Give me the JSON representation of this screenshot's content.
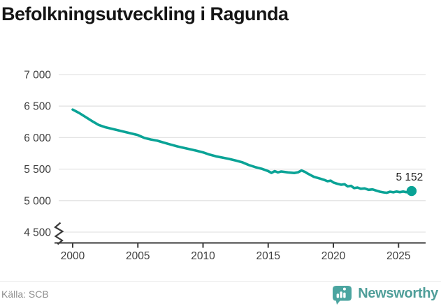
{
  "header": {
    "title": "Befolkningsutveckling i Ragunda"
  },
  "chart_data": {
    "type": "line",
    "title": "Befolkningsutveckling i Ragunda",
    "x_unit": "year",
    "ylim": [
      4500,
      7000
    ],
    "axis_break_below": 4500,
    "grid": "horizontal",
    "legend": "none",
    "colors": {
      "line": "#0aa396",
      "grid": "#e3e3e3",
      "axis": "#3a3a3a",
      "tick_label": "#3f3f3f",
      "annotation": "#1f1f1f"
    },
    "xticks": [
      2000,
      2005,
      2010,
      2015,
      2020,
      2025
    ],
    "yticks": [
      {
        "value": 7000,
        "label": "7 000"
      },
      {
        "value": 6500,
        "label": "6 500"
      },
      {
        "value": 6000,
        "label": "6 000"
      },
      {
        "value": 5500,
        "label": "5 500"
      },
      {
        "value": 5000,
        "label": "5 000"
      },
      {
        "value": 4500,
        "label": "4 500"
      }
    ],
    "annotation": {
      "text": "5 152",
      "x": 2026,
      "y": 5152
    },
    "series": [
      {
        "points": [
          [
            2000,
            6445
          ],
          [
            2000.5,
            6390
          ],
          [
            2001,
            6325
          ],
          [
            2001.5,
            6260
          ],
          [
            2002,
            6200
          ],
          [
            2002.5,
            6165
          ],
          [
            2003,
            6140
          ],
          [
            2003.5,
            6115
          ],
          [
            2004,
            6090
          ],
          [
            2004.5,
            6065
          ],
          [
            2005,
            6040
          ],
          [
            2005.5,
            5995
          ],
          [
            2006,
            5970
          ],
          [
            2006.5,
            5950
          ],
          [
            2007,
            5920
          ],
          [
            2007.5,
            5890
          ],
          [
            2008,
            5862
          ],
          [
            2008.4,
            5843
          ],
          [
            2009,
            5815
          ],
          [
            2009.5,
            5792
          ],
          [
            2010,
            5765
          ],
          [
            2010.5,
            5730
          ],
          [
            2011,
            5702
          ],
          [
            2011.5,
            5682
          ],
          [
            2012,
            5662
          ],
          [
            2012.5,
            5636
          ],
          [
            2013,
            5610
          ],
          [
            2013.5,
            5565
          ],
          [
            2014,
            5532
          ],
          [
            2014.5,
            5506
          ],
          [
            2015,
            5468
          ],
          [
            2015.25,
            5440
          ],
          [
            2015.5,
            5468
          ],
          [
            2015.75,
            5448
          ],
          [
            2016,
            5462
          ],
          [
            2016.5,
            5448
          ],
          [
            2017,
            5438
          ],
          [
            2017.3,
            5450
          ],
          [
            2017.55,
            5478
          ],
          [
            2017.8,
            5458
          ],
          [
            2018,
            5432
          ],
          [
            2018.5,
            5378
          ],
          [
            2019,
            5348
          ],
          [
            2019.3,
            5328
          ],
          [
            2019.55,
            5308
          ],
          [
            2019.8,
            5316
          ],
          [
            2020,
            5288
          ],
          [
            2020.3,
            5268
          ],
          [
            2020.6,
            5252
          ],
          [
            2020.85,
            5260
          ],
          [
            2021.1,
            5226
          ],
          [
            2021.35,
            5234
          ],
          [
            2021.6,
            5198
          ],
          [
            2021.85,
            5208
          ],
          [
            2022.1,
            5188
          ],
          [
            2022.4,
            5194
          ],
          [
            2022.7,
            5172
          ],
          [
            2023,
            5178
          ],
          [
            2023.3,
            5158
          ],
          [
            2023.6,
            5140
          ],
          [
            2023.85,
            5130
          ],
          [
            2024.1,
            5124
          ],
          [
            2024.35,
            5142
          ],
          [
            2024.6,
            5132
          ],
          [
            2024.85,
            5144
          ],
          [
            2025.1,
            5134
          ],
          [
            2025.35,
            5144
          ],
          [
            2025.6,
            5134
          ],
          [
            2025.8,
            5142
          ],
          [
            2026,
            5152
          ]
        ]
      }
    ]
  },
  "icons": {
    "brand": "bar-chart-speech-bubble-icon",
    "axis_break": "axis-break-zigzag-icon"
  },
  "footer": {
    "source": "Källa: SCB",
    "brand": "Newsworthy"
  }
}
